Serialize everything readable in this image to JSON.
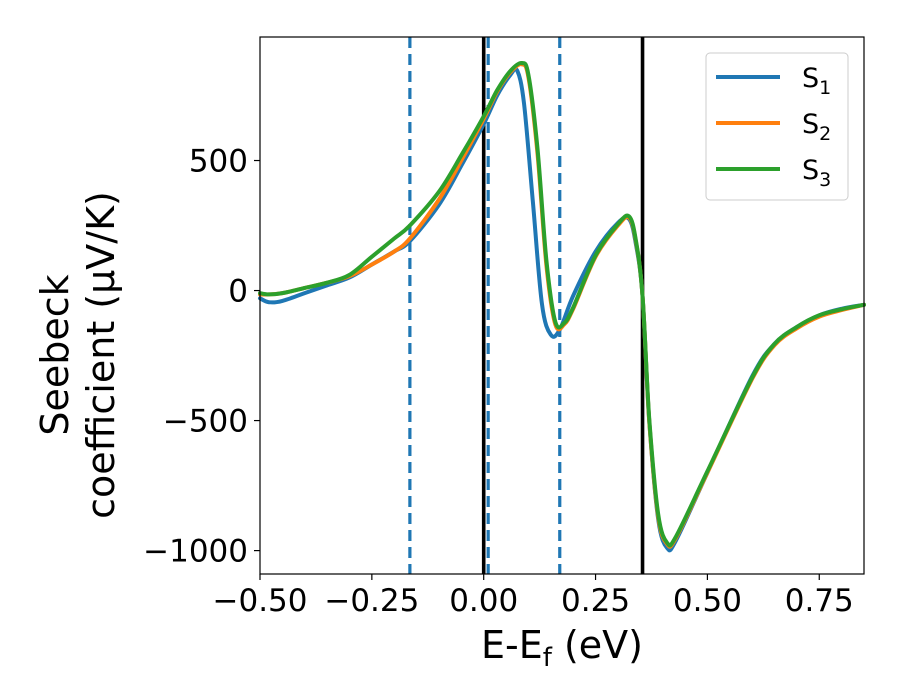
{
  "chart_data": {
    "type": "line",
    "xlabel": "E-E_f (eV)",
    "ylabel_line1": "Seebeck",
    "ylabel_line2": "coefficient  (μV/K)",
    "xlim": [
      -0.5,
      0.85
    ],
    "ylim": [
      -1090,
      975
    ],
    "x_ticks": [
      -0.5,
      -0.25,
      0.0,
      0.25,
      0.5,
      0.75
    ],
    "x_tick_labels": [
      "−0.50",
      "−0.25",
      "0.00",
      "0.25",
      "0.50",
      "0.75"
    ],
    "y_ticks": [
      -1000,
      -500,
      0,
      500
    ],
    "y_tick_labels": [
      "−1000",
      "−500",
      "0",
      "500"
    ],
    "grid": false,
    "legend_position": "top-right",
    "vlines": [
      {
        "x": -0.165,
        "style": "dashed",
        "color": "#1f77b4"
      },
      {
        "x": 0.0,
        "style": "solid",
        "color": "#000000"
      },
      {
        "x": 0.01,
        "style": "dashed",
        "color": "#1f77b4"
      },
      {
        "x": 0.17,
        "style": "dashed",
        "color": "#1f77b4"
      },
      {
        "x": 0.355,
        "style": "solid",
        "color": "#000000"
      }
    ],
    "series": [
      {
        "name": "S",
        "sub": "1",
        "color": "#1f77b4",
        "x": [
          -0.5,
          -0.48,
          -0.45,
          -0.4,
          -0.35,
          -0.3,
          -0.25,
          -0.2,
          -0.165,
          -0.1,
          -0.05,
          0.0,
          0.03,
          0.06,
          0.075,
          0.09,
          0.11,
          0.13,
          0.15,
          0.17,
          0.2,
          0.25,
          0.3,
          0.325,
          0.34,
          0.355,
          0.37,
          0.39,
          0.41,
          0.43,
          0.5,
          0.6,
          0.65,
          0.7,
          0.75,
          0.8,
          0.85
        ],
        "y": [
          -30,
          -45,
          -40,
          -10,
          20,
          50,
          100,
          150,
          190,
          330,
          480,
          640,
          750,
          830,
          845,
          720,
          340,
          -50,
          -170,
          -150,
          -20,
          150,
          260,
          275,
          180,
          -20,
          -500,
          -880,
          -990,
          -960,
          -700,
          -330,
          -205,
          -140,
          -95,
          -70,
          -55
        ]
      },
      {
        "name": "S",
        "sub": "2",
        "color": "#ff7f0e",
        "x": [
          -0.5,
          -0.48,
          -0.45,
          -0.4,
          -0.35,
          -0.3,
          -0.25,
          -0.2,
          -0.165,
          -0.1,
          -0.05,
          0.0,
          0.03,
          0.06,
          0.085,
          0.1,
          0.12,
          0.14,
          0.16,
          0.18,
          0.2,
          0.25,
          0.3,
          0.325,
          0.34,
          0.355,
          0.37,
          0.39,
          0.41,
          0.43,
          0.5,
          0.6,
          0.65,
          0.7,
          0.75,
          0.8,
          0.85
        ],
        "y": [
          -15,
          -15,
          -10,
          10,
          30,
          55,
          100,
          150,
          200,
          350,
          500,
          660,
          765,
          840,
          870,
          820,
          530,
          100,
          -130,
          -130,
          -70,
          130,
          250,
          280,
          190,
          -20,
          -500,
          -870,
          -975,
          -950,
          -700,
          -340,
          -210,
          -145,
          -100,
          -75,
          -55
        ]
      },
      {
        "name": "S",
        "sub": "3",
        "color": "#2ca02c",
        "x": [
          -0.5,
          -0.48,
          -0.45,
          -0.4,
          -0.35,
          -0.3,
          -0.25,
          -0.2,
          -0.165,
          -0.1,
          -0.05,
          0.0,
          0.03,
          0.06,
          0.085,
          0.1,
          0.12,
          0.14,
          0.16,
          0.18,
          0.2,
          0.25,
          0.3,
          0.325,
          0.34,
          0.355,
          0.37,
          0.39,
          0.41,
          0.43,
          0.5,
          0.6,
          0.65,
          0.7,
          0.75,
          0.8,
          0.85
        ],
        "y": [
          -10,
          -15,
          -10,
          10,
          30,
          60,
          130,
          200,
          250,
          380,
          520,
          670,
          770,
          845,
          875,
          830,
          550,
          120,
          -120,
          -125,
          -65,
          135,
          255,
          285,
          195,
          -20,
          -490,
          -860,
          -970,
          -945,
          -695,
          -335,
          -205,
          -140,
          -95,
          -72,
          -55
        ]
      }
    ]
  }
}
